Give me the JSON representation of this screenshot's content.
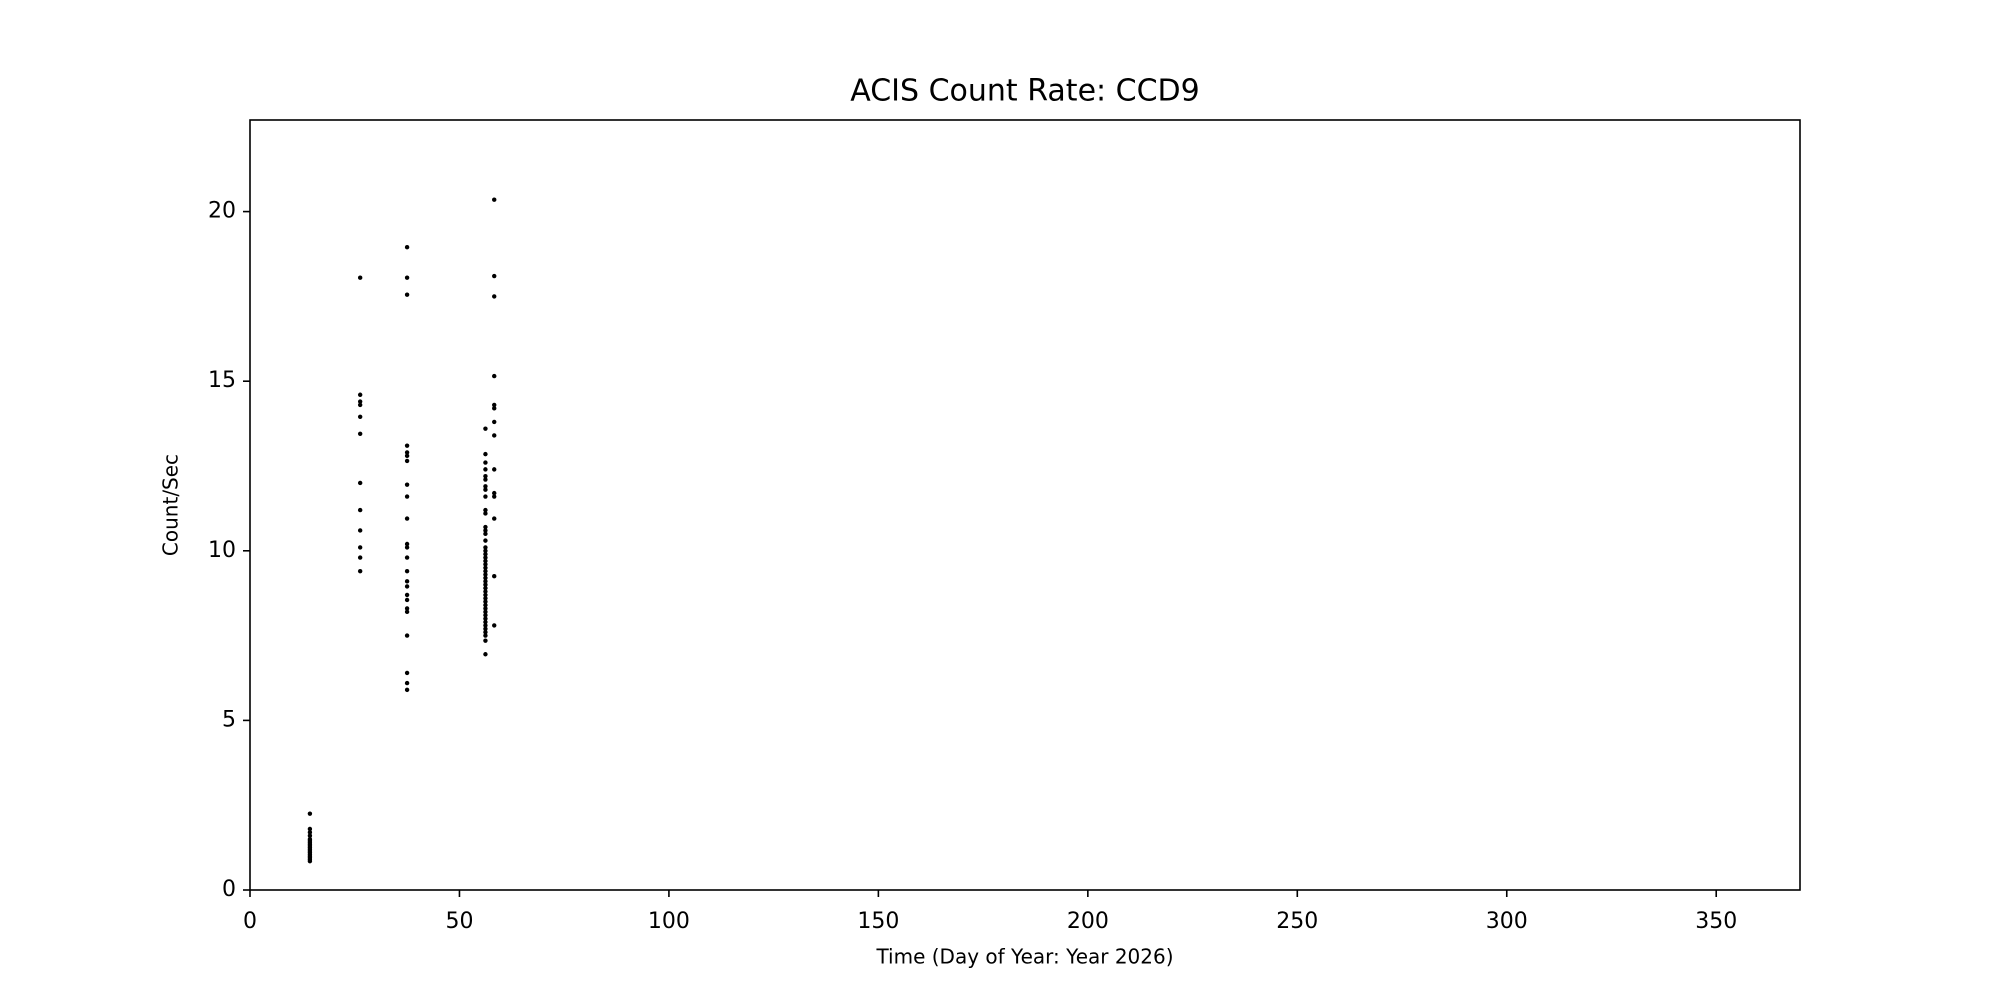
{
  "chart_data": {
    "type": "scatter",
    "title": "ACIS Count Rate: CCD9",
    "xlabel": "Time (Day of Year: Year 2026)",
    "ylabel": "Count/Sec",
    "color": "#000000",
    "xlim": [
      0,
      370
    ],
    "ylim": [
      0,
      22.7
    ],
    "xticks": [
      0,
      50,
      100,
      150,
      200,
      250,
      300,
      350
    ],
    "yticks": [
      0,
      5,
      10,
      15,
      20
    ],
    "x": [
      14.3,
      14.3,
      14.3,
      14.3,
      14.3,
      14.3,
      14.3,
      14.3,
      14.3,
      14.3,
      14.3,
      14.3,
      14.3,
      14.3,
      14.3,
      14.3,
      14.3,
      14.3,
      26.3,
      26.3,
      26.3,
      26.3,
      26.3,
      26.3,
      26.3,
      26.3,
      26.3,
      26.3,
      26.3,
      26.3,
      37.5,
      37.5,
      37.5,
      37.5,
      37.5,
      37.5,
      37.5,
      37.5,
      37.5,
      37.5,
      37.5,
      37.5,
      37.5,
      37.5,
      37.5,
      37.5,
      37.5,
      37.5,
      37.5,
      37.5,
      37.5,
      37.5,
      37.5,
      37.5,
      56.2,
      56.2,
      56.2,
      56.2,
      56.2,
      56.2,
      56.2,
      56.2,
      56.2,
      56.2,
      56.2,
      56.2,
      56.2,
      56.2,
      56.2,
      56.2,
      56.2,
      56.2,
      56.2,
      56.2,
      56.2,
      56.2,
      56.2,
      56.2,
      56.2,
      56.2,
      56.2,
      56.2,
      56.2,
      56.2,
      56.2,
      56.2,
      56.2,
      56.2,
      56.2,
      56.2,
      56.2,
      56.2,
      56.2,
      56.2,
      56.2,
      56.2,
      56.2,
      56.2,
      58.3,
      58.3,
      58.3,
      58.3,
      58.3,
      58.3,
      58.3,
      58.3,
      58.3,
      58.3,
      58.3,
      58.3,
      58.3,
      58.3
    ],
    "values": [
      2.25,
      1.8,
      1.7,
      1.6,
      1.5,
      1.45,
      1.4,
      1.35,
      1.3,
      1.25,
      1.2,
      1.15,
      1.1,
      1.05,
      1.0,
      0.95,
      0.9,
      0.85,
      18.05,
      14.6,
      14.4,
      14.3,
      13.95,
      13.45,
      12.0,
      11.2,
      10.6,
      10.1,
      9.8,
      9.4,
      18.95,
      18.05,
      17.55,
      13.1,
      12.9,
      12.8,
      12.65,
      11.95,
      11.6,
      10.95,
      10.2,
      10.1,
      9.8,
      9.4,
      9.1,
      8.95,
      8.7,
      8.55,
      8.3,
      8.2,
      7.5,
      6.4,
      6.1,
      5.9,
      13.6,
      12.85,
      12.6,
      12.4,
      12.2,
      12.1,
      11.9,
      11.8,
      11.6,
      11.2,
      11.1,
      10.7,
      10.6,
      10.5,
      10.3,
      10.1,
      10.0,
      9.9,
      9.8,
      9.7,
      9.6,
      9.5,
      9.4,
      9.3,
      9.2,
      9.1,
      9.0,
      8.9,
      8.8,
      8.7,
      8.6,
      8.5,
      8.4,
      8.3,
      8.2,
      8.1,
      8.0,
      7.9,
      7.8,
      7.7,
      7.6,
      7.5,
      7.35,
      6.95,
      20.35,
      18.1,
      17.5,
      15.15,
      14.3,
      14.2,
      13.8,
      13.4,
      12.4,
      11.7,
      11.6,
      10.95,
      9.25,
      7.8
    ]
  }
}
